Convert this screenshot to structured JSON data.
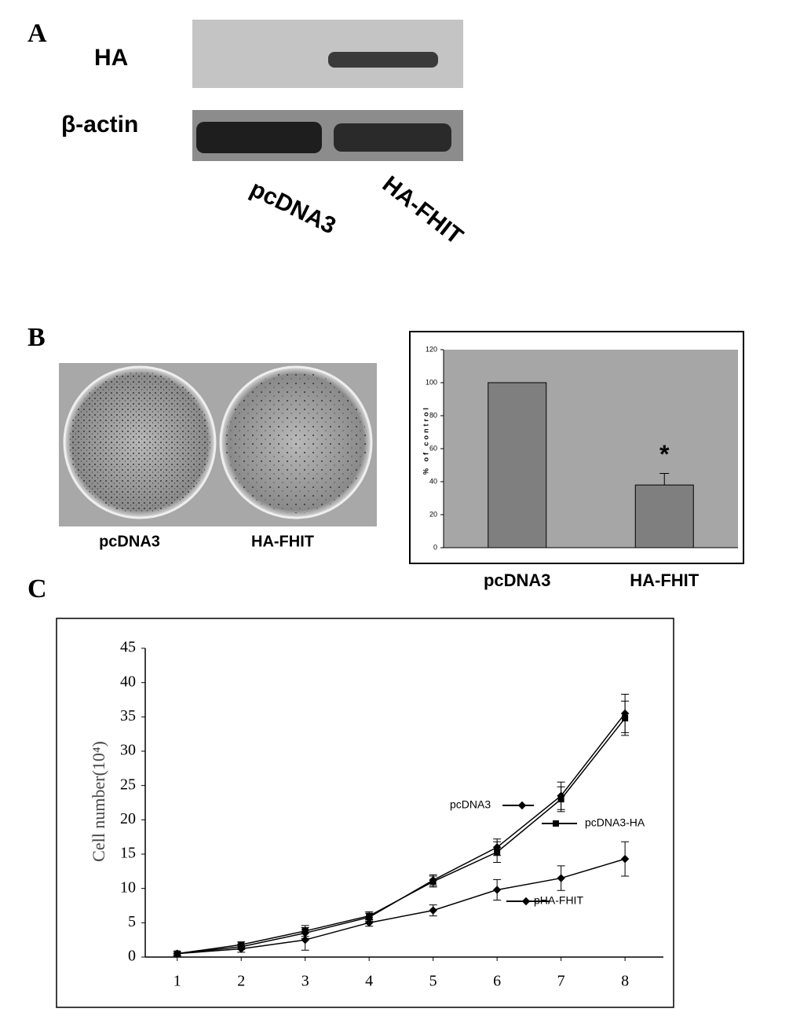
{
  "panels": {
    "a": {
      "label": "A",
      "rows": [
        "HA",
        "β-actin"
      ],
      "lanes": [
        "pcDNA3",
        "HA-FHIT"
      ]
    },
    "b": {
      "label": "B",
      "photo_labels": [
        "pcDNA3",
        "HA-FHIT"
      ]
    },
    "c": {
      "label": "C"
    }
  },
  "chart_data": [
    {
      "type": "bar",
      "ylabel": "% of control",
      "categories": [
        "pcDNA3",
        "HA-FHIT"
      ],
      "values": [
        100,
        38
      ],
      "errors": [
        null,
        7
      ],
      "annotation": "*",
      "color": "#7f7f7f",
      "background": "#a6a6a6",
      "ylim": [
        0,
        120
      ],
      "yticks": [
        0,
        20,
        40,
        60,
        80,
        100,
        120
      ]
    },
    {
      "type": "line",
      "ylabel": "Cell number(10⁴)",
      "x": [
        1,
        2,
        3,
        4,
        5,
        6,
        7,
        8
      ],
      "xlim": [
        0.5,
        8.6
      ],
      "xticks": [
        1,
        2,
        3,
        4,
        5,
        6,
        7,
        8
      ],
      "ylim": [
        0,
        45
      ],
      "yticks": [
        0,
        5,
        10,
        15,
        20,
        25,
        30,
        35,
        40,
        45
      ],
      "series": [
        {
          "name": "pcDNA3",
          "color": "#000000",
          "marker": "diamond",
          "values": [
            0.5,
            1.5,
            3.5,
            5.8,
            11.2,
            16,
            23.5,
            35.5
          ],
          "errors": [
            0.3,
            0.4,
            0.8,
            0.6,
            0.8,
            1.2,
            2,
            2.8
          ]
        },
        {
          "name": "pcDNA3-HA",
          "color": "#000000",
          "marker": "square",
          "values": [
            0.5,
            1.8,
            3.8,
            6,
            11,
            15.3,
            23,
            34.8
          ],
          "errors": [
            0.3,
            0.4,
            0.8,
            0.6,
            0.8,
            1.5,
            1.8,
            2.5
          ]
        },
        {
          "name": "pHA-FHIT",
          "color": "#000000",
          "marker": "diamond",
          "values": [
            0.5,
            1.2,
            2.5,
            5,
            6.8,
            9.8,
            11.5,
            14.3
          ],
          "errors": [
            0.3,
            0.5,
            1.5,
            0.5,
            0.8,
            1.5,
            1.8,
            2.5
          ]
        }
      ]
    }
  ]
}
